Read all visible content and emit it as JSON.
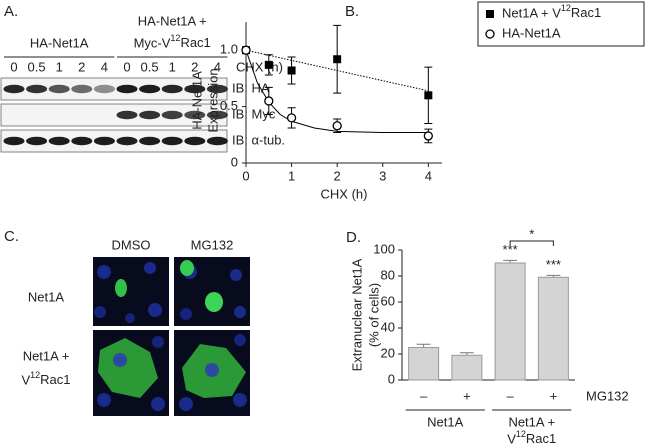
{
  "blot": {
    "panel_label": "A.",
    "groups": [
      [
        "HA-Net1A"
      ],
      [
        "HA-Net1A +",
        "Myc-V12Rac1"
      ]
    ],
    "lanes": [
      "0",
      "0.5",
      "1",
      "2",
      "4",
      "0",
      "0.5",
      "1",
      "2",
      "4"
    ],
    "lanes_label": "CHX (h)",
    "rows": [
      "IB: HA",
      "IB: Myc",
      "IB: α-tub."
    ]
  },
  "micrographs": {
    "panel_label": "C.",
    "columns": [
      "DMSO",
      "MG132"
    ],
    "rows": [
      [
        "Net1A"
      ],
      [
        "Net1A +",
        "V12Rac1"
      ]
    ]
  },
  "chart_data": [
    {
      "type": "scatter",
      "panel_label": "B.",
      "x_label": "CHX (h)",
      "y_label": [
        "HA-Net1A",
        "Expression"
      ],
      "xlim": [
        0,
        4.3
      ],
      "ylim": [
        0,
        1.25
      ],
      "xticks": [
        0,
        1,
        2,
        3,
        4
      ],
      "yticks": [
        0,
        0.5,
        {
          "value": 1,
          "label": "1.0"
        }
      ],
      "series": [
        {
          "name": "Net1A + V12Rac1",
          "color": "#000000",
          "marker": "square",
          "x": [
            0,
            0.5,
            1,
            2,
            4
          ],
          "values": [
            1.0,
            0.87,
            0.82,
            0.92,
            0.6
          ],
          "errors": [
            0,
            0.09,
            0.12,
            0.3,
            0.25
          ],
          "fit": {
            "style": "dotted",
            "x": [
              0,
              4
            ],
            "values": [
              1.0,
              0.64
            ]
          }
        },
        {
          "name": "HA-Net1A",
          "color": "#000000",
          "marker": "open-circle",
          "x": [
            0,
            0.5,
            1,
            2,
            4
          ],
          "values": [
            1.0,
            0.55,
            0.4,
            0.33,
            0.24
          ],
          "errors": [
            0,
            0.12,
            0.09,
            0.06,
            0.06
          ],
          "fit": {
            "style": "solid",
            "x": [
              0,
              0.25,
              0.5,
              0.75,
              1,
              1.5,
              2,
              3,
              4
            ],
            "values": [
              1.0,
              0.71,
              0.54,
              0.43,
              0.37,
              0.31,
              0.28,
              0.27,
              0.27
            ]
          }
        }
      ]
    },
    {
      "type": "bar",
      "panel_label": "D.",
      "y_label": [
        "Extranuclear Net1A",
        "(% of cells)"
      ],
      "categories": [
        "–",
        "+",
        "–",
        "+"
      ],
      "category_axis_label": "MG132",
      "groups": [
        [
          "Net1A"
        ],
        [
          "Net1A +",
          "V12Rac1"
        ]
      ],
      "values": [
        25,
        19,
        90,
        79
      ],
      "errors": [
        2.5,
        2,
        2,
        1.5
      ],
      "value_annotations": [
        null,
        null,
        "***",
        "***"
      ],
      "bracket_label": "*",
      "color": "#d4d4d4",
      "ylim": [
        0,
        100
      ],
      "yticks": [
        0,
        20,
        40,
        60,
        80,
        100
      ]
    }
  ]
}
